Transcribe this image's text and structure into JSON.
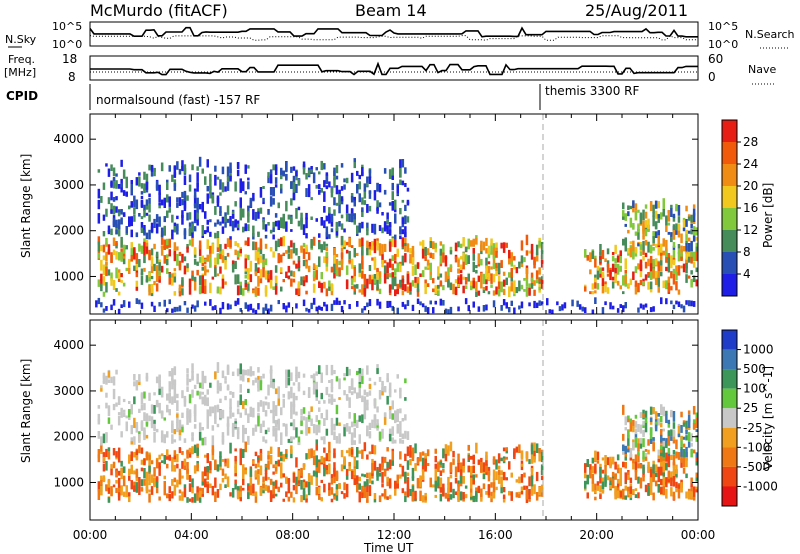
{
  "header": {
    "station": "McMurdo (fitACF)",
    "beam": "Beam 14",
    "date": "25/Aug/2011"
  },
  "top_panels": {
    "noise": {
      "left_label": "N.Sky",
      "right_label": "N.Search",
      "left_ticks": [
        "10^5",
        "10^0"
      ],
      "right_ticks": [
        "10^5",
        "10^0"
      ]
    },
    "freq": {
      "left_label_1": "Freq.",
      "left_label_2": "[MHz]",
      "right_label": "Nave",
      "left_ticks": [
        "18",
        "8"
      ],
      "right_ticks": [
        "60",
        "0"
      ]
    },
    "cpid": {
      "label": "CPID",
      "modes": [
        "normalsound (fast) -157 RF",
        "themis 3300 RF"
      ]
    }
  },
  "chart_data": [
    {
      "type": "heatmap",
      "title": "",
      "xlabel": "",
      "ylabel": "Slant Range [km]",
      "yticks": [
        "1000",
        "2000",
        "3000",
        "4000"
      ],
      "xlim_hours": [
        0,
        24
      ],
      "ylim_km": [
        180,
        4550
      ],
      "colorbar": {
        "label": "Power [dB]",
        "ticks": [
          "4",
          "8",
          "12",
          "16",
          "20",
          "24",
          "28"
        ],
        "colors": [
          "#1e1ee6",
          "#2850b4",
          "#468c5a",
          "#82c83c",
          "#f0c81e",
          "#f08c14",
          "#f05a0a",
          "#e61e14"
        ]
      },
      "echo_regions": [
        {
          "t": [
            0.3,
            17.8
          ],
          "range": [
            550,
            1700
          ],
          "level": "strong"
        },
        {
          "t": [
            0.3,
            12.5
          ],
          "range": [
            1800,
            3400
          ],
          "level": "weak"
        },
        {
          "t": [
            19.5,
            24.0
          ],
          "range": [
            600,
            1500
          ],
          "level": "strong"
        },
        {
          "t": [
            21.0,
            24.0
          ],
          "range": [
            1500,
            2500
          ],
          "level": "moderate"
        },
        {
          "t": [
            0.0,
            24.0
          ],
          "range": [
            180,
            400
          ],
          "level": "ground"
        }
      ]
    },
    {
      "type": "heatmap",
      "title": "",
      "xlabel": "Time UT",
      "ylabel": "Slant Range [km]",
      "yticks": [
        "1000",
        "2000",
        "3000",
        "4000"
      ],
      "xticks": [
        "00:00",
        "04:00",
        "08:00",
        "12:00",
        "16:00",
        "20:00",
        "00:00"
      ],
      "xlim_hours": [
        0,
        24
      ],
      "ylim_km": [
        180,
        4550
      ],
      "colorbar": {
        "label": "Velocity [m s^-1]",
        "ticks": [
          "1000",
          "500",
          "100",
          "25",
          "-25",
          "-100",
          "-500",
          "-1000"
        ],
        "colors": [
          "#1e3cc8",
          "#3c78b4",
          "#3c965a",
          "#64c83c",
          "#c8c8c8",
          "#f0a01e",
          "#f07814",
          "#f04614",
          "#e61414"
        ]
      },
      "echo_regions": [
        {
          "t": [
            0.3,
            17.8
          ],
          "range": [
            550,
            1700
          ],
          "level": "toward_negative"
        },
        {
          "t": [
            0.3,
            12.5
          ],
          "range": [
            1800,
            3400
          ],
          "level": "near_zero"
        },
        {
          "t": [
            19.5,
            24.0
          ],
          "range": [
            600,
            1500
          ],
          "level": "toward_negative"
        },
        {
          "t": [
            21.0,
            24.0
          ],
          "range": [
            1500,
            2500
          ],
          "level": "mixed"
        }
      ]
    }
  ]
}
